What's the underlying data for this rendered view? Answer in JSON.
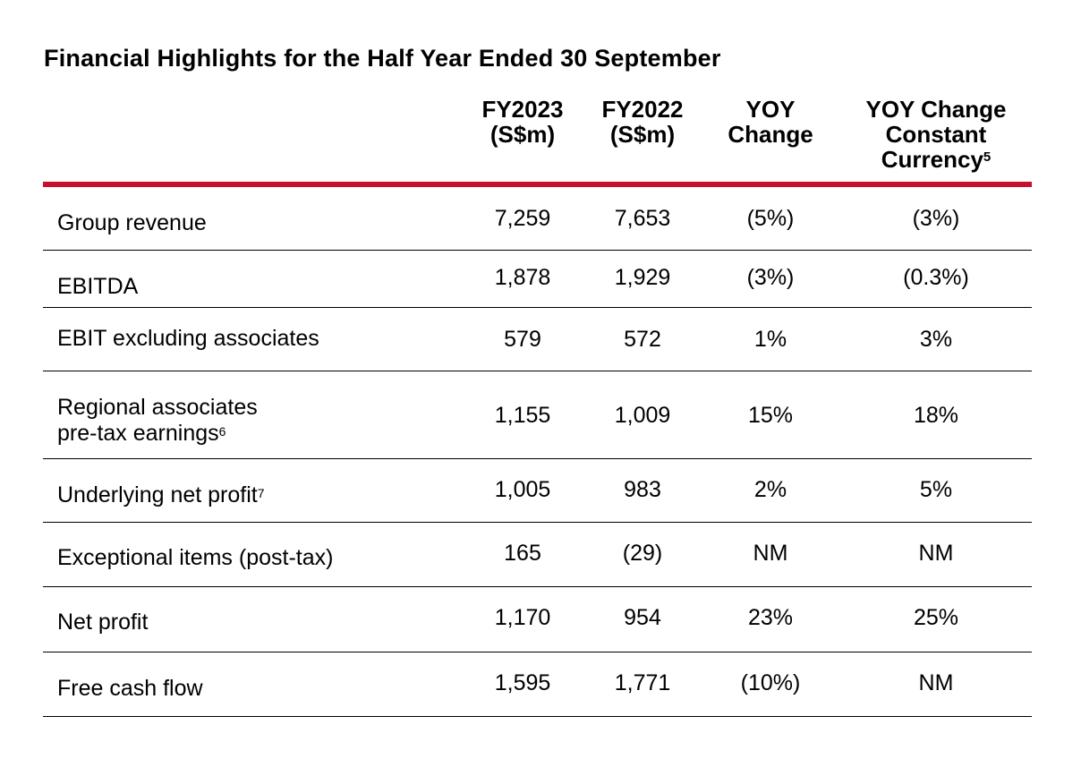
{
  "title": "Financial Highlights for the Half Year Ended 30 September",
  "headers": {
    "fy2023": [
      "FY2023",
      "(S$m)"
    ],
    "fy2022": [
      "FY2022",
      "(S$m)"
    ],
    "yoy": [
      "YOY",
      "Change"
    ],
    "yoy_cc": [
      "YOY Change",
      "Constant",
      "Currency"
    ],
    "yoy_cc_footnote": "5"
  },
  "accent_color": "#c8102e",
  "rows": [
    {
      "label": "Group revenue",
      "footnote": "",
      "fy2023": "7,259",
      "fy2022": "7,653",
      "yoy": "(5%)",
      "yoy_cc": "(3%)"
    },
    {
      "label": "EBITDA",
      "footnote": "",
      "fy2023": "1,878",
      "fy2022": "1,929",
      "yoy": "(3%)",
      "yoy_cc": "(0.3%)"
    },
    {
      "label": "EBIT excluding associates",
      "footnote": "",
      "fy2023": "579",
      "fy2022": "572",
      "yoy": "1%",
      "yoy_cc": "3%"
    },
    {
      "label": "Regional associates",
      "label2": "pre-tax earnings",
      "footnote": "6",
      "fy2023": "1,155",
      "fy2022": "1,009",
      "yoy": "15%",
      "yoy_cc": "18%"
    },
    {
      "label": "Underlying net profit",
      "footnote": "7",
      "fy2023": "1,005",
      "fy2022": "983",
      "yoy": "2%",
      "yoy_cc": "5%"
    },
    {
      "label": "Exceptional items (post-tax)",
      "footnote": "",
      "fy2023": "165",
      "fy2022": "(29)",
      "yoy": "NM",
      "yoy_cc": "NM"
    },
    {
      "label": "Net profit",
      "footnote": "",
      "fy2023": "1,170",
      "fy2022": "954",
      "yoy": "23%",
      "yoy_cc": "25%"
    },
    {
      "label": "Free cash flow",
      "footnote": "",
      "fy2023": "1,595",
      "fy2022": "1,771",
      "yoy": "(10%)",
      "yoy_cc": "NM"
    }
  ]
}
